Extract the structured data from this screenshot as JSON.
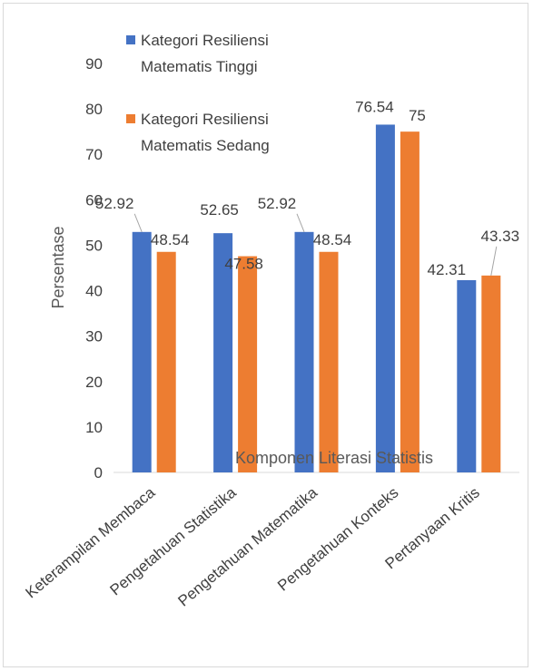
{
  "chart_data": {
    "type": "bar",
    "title": "",
    "xlabel": "Komponen Literasi Statistis",
    "ylabel": "Persentase",
    "ylim": [
      0,
      90
    ],
    "yticks": [
      0,
      10,
      20,
      30,
      40,
      50,
      60,
      70,
      80,
      90
    ],
    "grid": false,
    "legend_position": "top-left",
    "categories": [
      "Keterampilan Membaca",
      "Pengetahuan Statistika",
      "Pengetahuan Matematika",
      "Pengetahuan Konteks",
      "Pertanyaan Kritis"
    ],
    "series": [
      {
        "name": "Kategori Resiliensi Matematis Tinggi",
        "legend_lines": [
          "Kategori Resiliensi",
          "Matematis Tinggi"
        ],
        "color": "#4472c4",
        "values": [
          52.92,
          52.65,
          52.92,
          76.54,
          42.31
        ],
        "labels": [
          "52.92",
          "52.65",
          "52.92",
          "76.54",
          "42.31"
        ]
      },
      {
        "name": "Kategori Resiliensi Matematis Sedang",
        "legend_lines": [
          "Kategori Resiliensi",
          "Matematis Sedang"
        ],
        "color": "#ed7d31",
        "values": [
          48.54,
          47.58,
          48.54,
          75,
          43.33
        ],
        "labels": [
          "48.54",
          "47.58",
          "48.54",
          "75",
          "43.33"
        ]
      }
    ]
  }
}
